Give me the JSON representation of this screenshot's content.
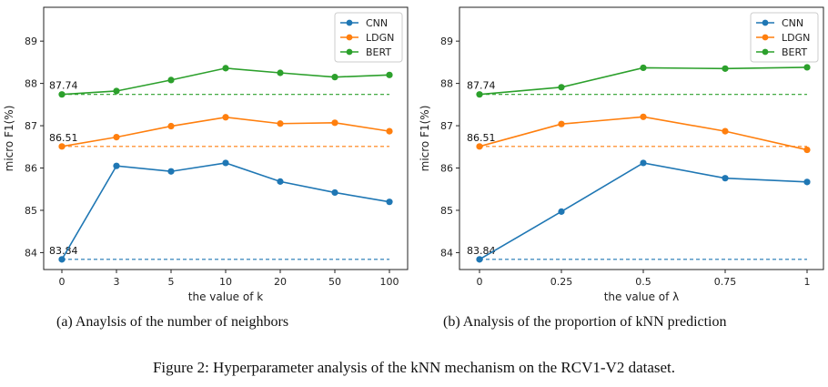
{
  "figure_caption": "Figure 2: Hyperparameter analysis of the kNN mechanism on the RCV1-V2 dataset.",
  "colors": {
    "CNN": "#1f77b4",
    "LDGN": "#ff7f0e",
    "BERT": "#2ca02c"
  },
  "chart_data": [
    {
      "type": "line",
      "caption": "(a)  Anaylsis of the number of neighbors",
      "xlabel": "the value of k",
      "ylabel": "micro F1(%)",
      "categories": [
        "0",
        "3",
        "5",
        "10",
        "20",
        "50",
        "100"
      ],
      "ylim": [
        83.6,
        89.8
      ],
      "yticks": [
        84,
        85,
        86,
        87,
        88,
        89
      ],
      "legend_position": "top-right",
      "series": [
        {
          "name": "CNN",
          "values": [
            83.84,
            86.05,
            85.92,
            86.12,
            85.68,
            85.42,
            85.2
          ],
          "baseline": 83.84,
          "baseline_label": "83.84"
        },
        {
          "name": "LDGN",
          "values": [
            86.51,
            86.73,
            86.99,
            87.2,
            87.05,
            87.07,
            86.87
          ],
          "baseline": 86.51,
          "baseline_label": "86.51"
        },
        {
          "name": "BERT",
          "values": [
            87.74,
            87.82,
            88.08,
            88.36,
            88.25,
            88.15,
            88.2
          ],
          "baseline": 87.74,
          "baseline_label": "87.74"
        }
      ]
    },
    {
      "type": "line",
      "caption": "(b)  Analysis of the proportion of kNN prediction",
      "xlabel": "the value of λ",
      "ylabel": "micro F1(%)",
      "categories": [
        "0",
        "0.25",
        "0.5",
        "0.75",
        "1"
      ],
      "ylim": [
        83.6,
        89.8
      ],
      "yticks": [
        84,
        85,
        86,
        87,
        88,
        89
      ],
      "legend_position": "top-right",
      "series": [
        {
          "name": "CNN",
          "values": [
            83.84,
            84.97,
            86.12,
            85.76,
            85.67
          ],
          "baseline": 83.84,
          "baseline_label": "83.84"
        },
        {
          "name": "LDGN",
          "values": [
            86.51,
            87.04,
            87.21,
            86.87,
            86.43
          ],
          "baseline": 86.51,
          "baseline_label": "86.51"
        },
        {
          "name": "BERT",
          "values": [
            87.74,
            87.91,
            88.37,
            88.35,
            88.38
          ],
          "baseline": 87.74,
          "baseline_label": "87.74"
        }
      ]
    }
  ]
}
